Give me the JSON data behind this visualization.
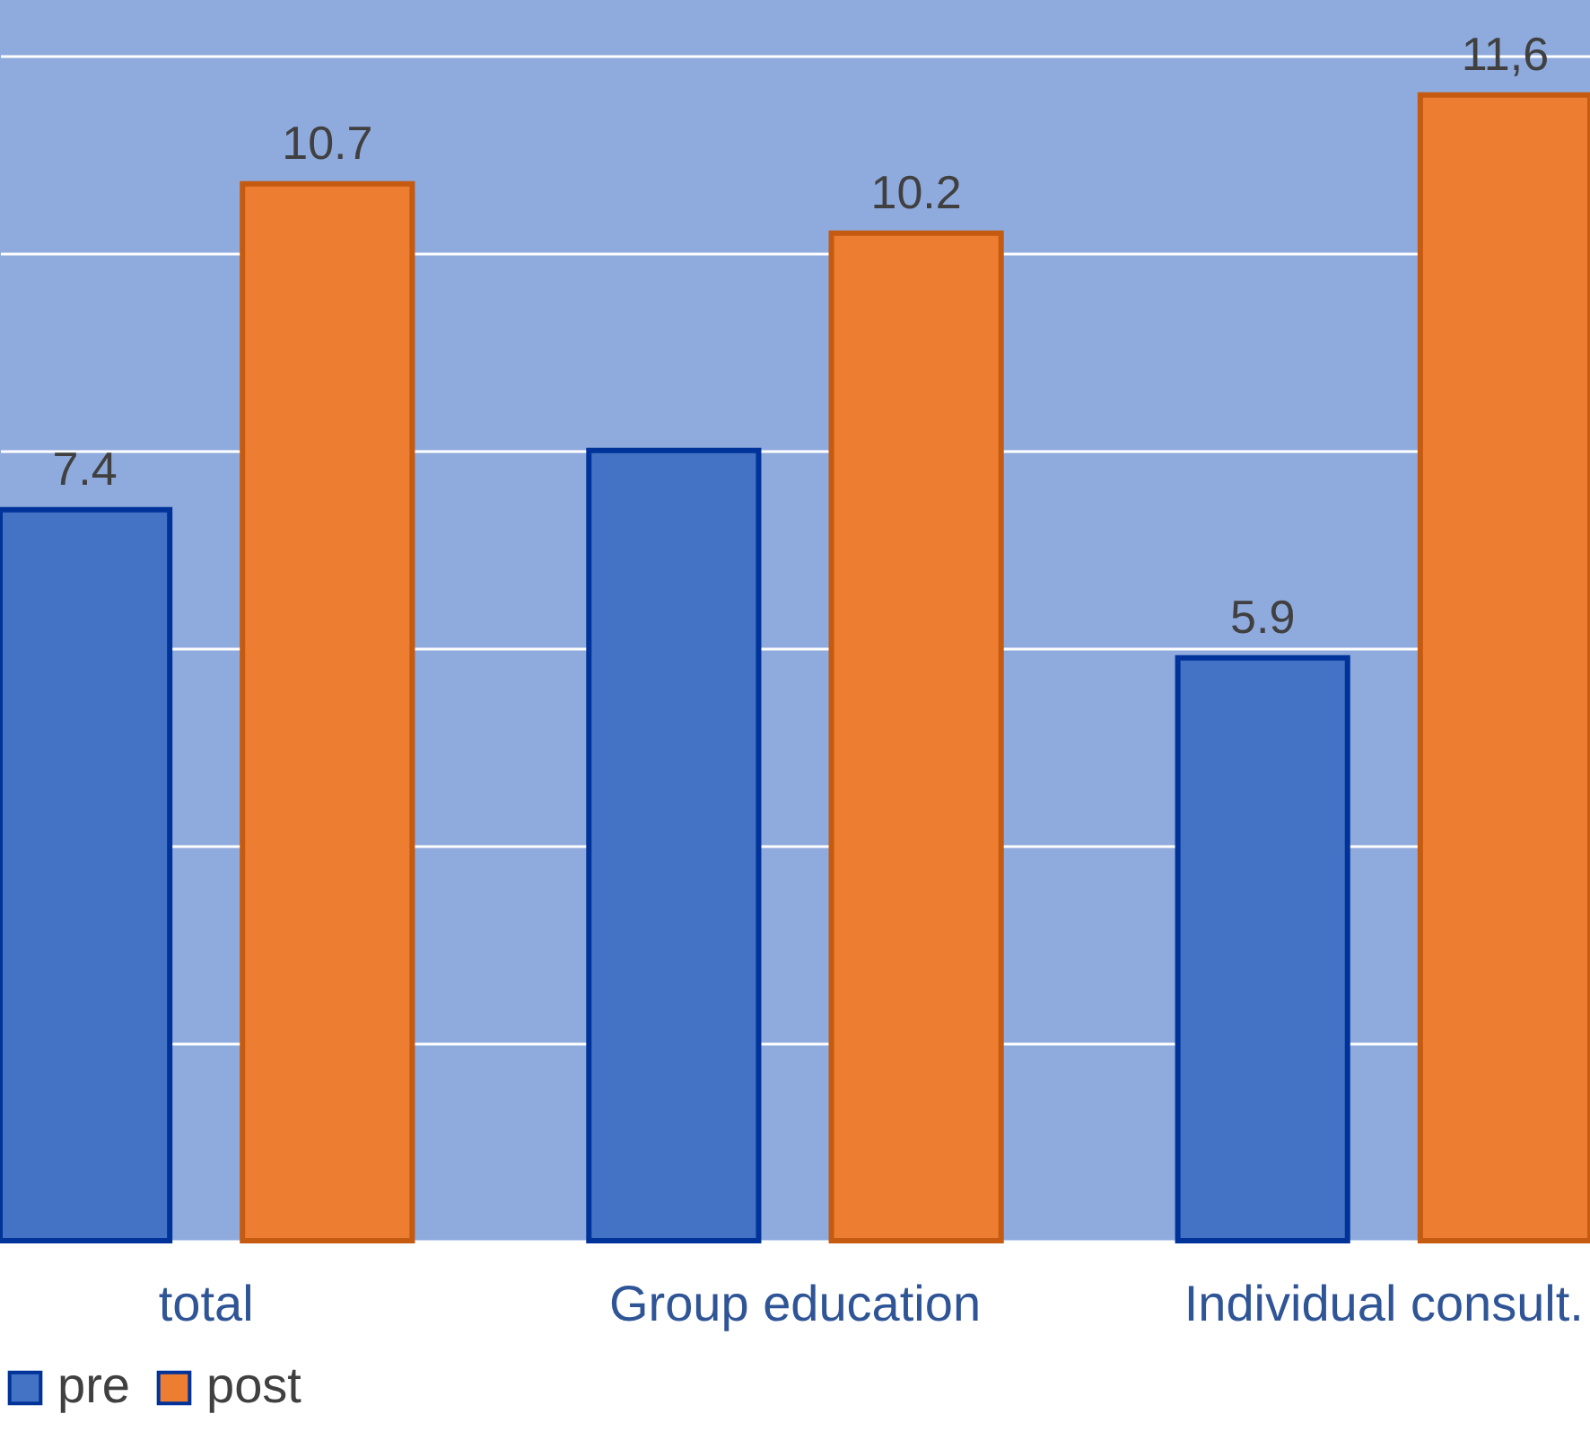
{
  "chart_data": {
    "type": "bar",
    "categories": [
      "total",
      "Group education",
      "Individual consult."
    ],
    "series": [
      {
        "name": "pre",
        "color": "#4472c4",
        "values": [
          7.4,
          8.0,
          5.9
        ],
        "value_labels": [
          "7.4",
          null,
          "5.9"
        ]
      },
      {
        "name": "post",
        "color": "#ed7d31",
        "values": [
          10.7,
          10.2,
          11.6
        ],
        "value_labels": [
          "10.7",
          "10.2",
          "11,6"
        ]
      }
    ],
    "ylim": [
      0,
      12.56
    ],
    "yticks": [
      {
        "value": 0,
        "label": null
      },
      {
        "value": 2,
        "label": null
      },
      {
        "value": 4,
        "label": null
      },
      {
        "value": 6,
        "label": null
      },
      {
        "value": 8,
        "label": null
      },
      {
        "value": 10,
        "label": null
      },
      {
        "value": 12,
        "label": null
      }
    ],
    "grid": "y",
    "legend": "bottom",
    "tick_labels": "x"
  }
}
